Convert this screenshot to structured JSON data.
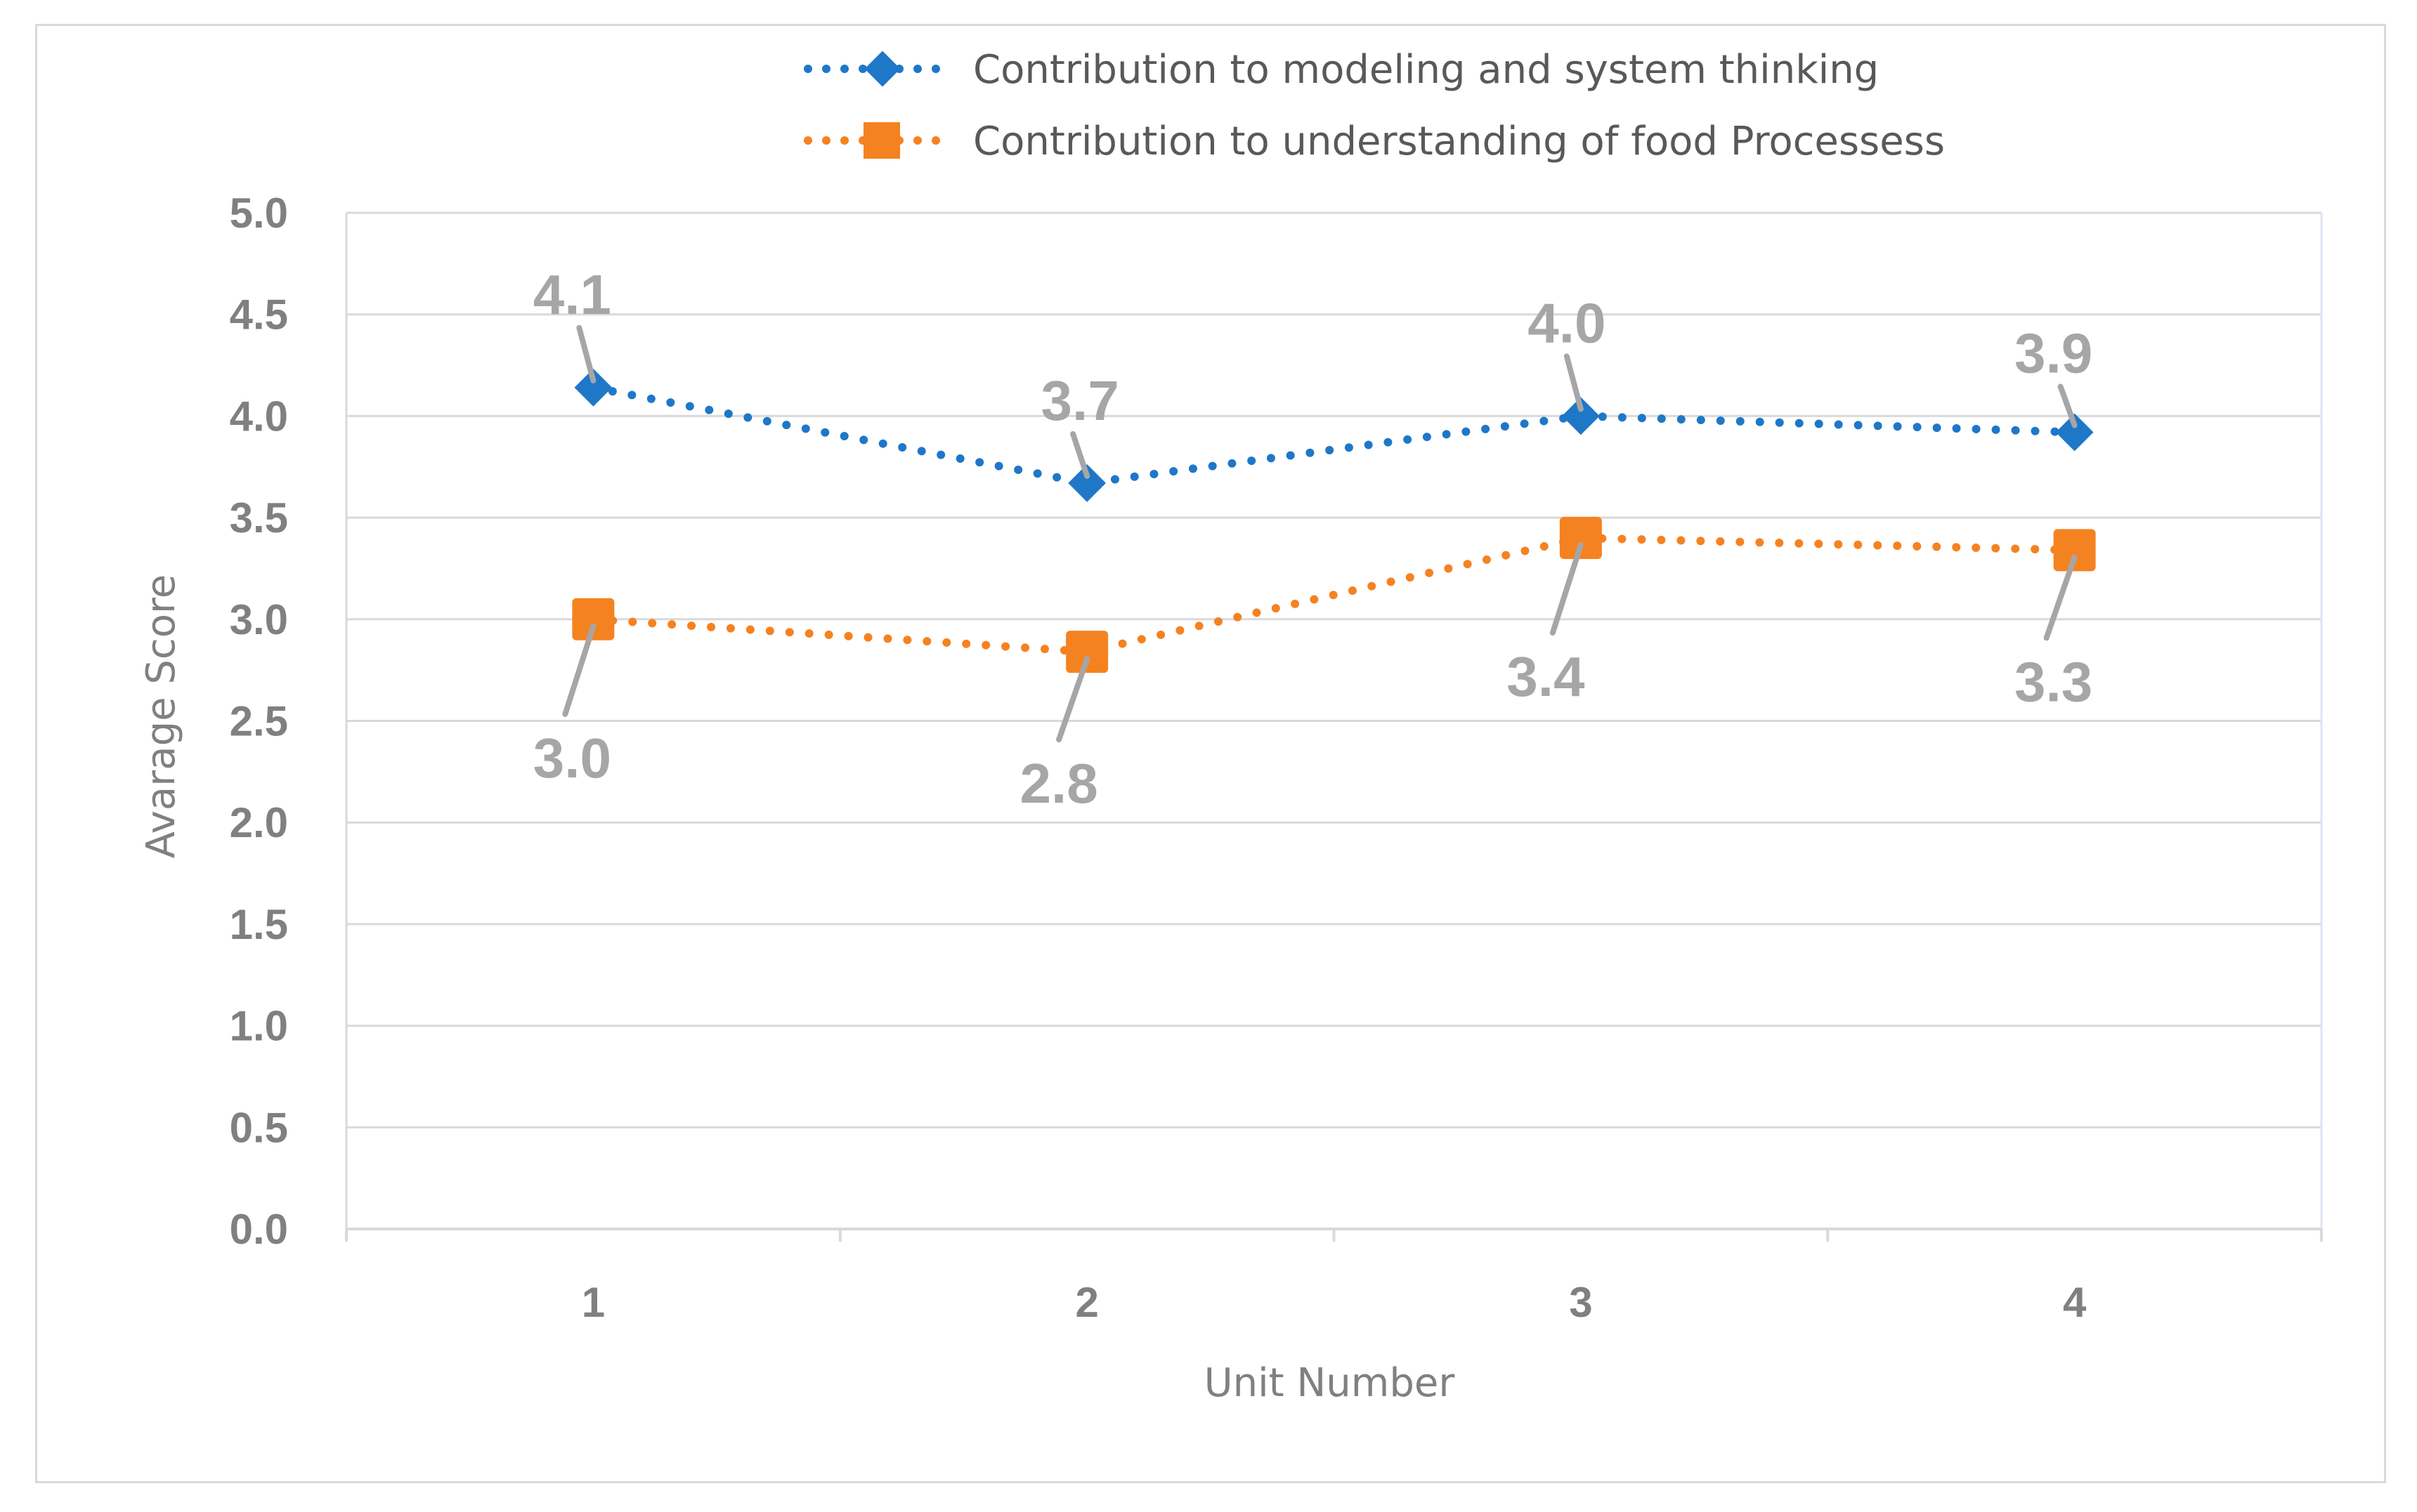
{
  "chart_data": {
    "type": "line",
    "title": "",
    "xlabel": "Unit Number",
    "ylabel": "Avarage Score",
    "categories": [
      "1",
      "2",
      "3",
      "4"
    ],
    "ylim": [
      0,
      5
    ],
    "yticks": [
      "0.0",
      "0.5",
      "1.0",
      "1.5",
      "2.0",
      "2.5",
      "3.0",
      "3.5",
      "4.0",
      "4.5",
      "5.0"
    ],
    "grid": true,
    "legend_position": "top",
    "series": [
      {
        "name": "Contribution to modeling and system thinking",
        "color": "#1f77c8",
        "marker": "diamond",
        "line_style": "dotted",
        "values": [
          4.14,
          3.67,
          4.0,
          3.92
        ],
        "labels": [
          "4.1",
          "3.7",
          "4.0",
          "3.9"
        ]
      },
      {
        "name": "Contribution to understanding of food Processess",
        "color": "#f58220",
        "marker": "square",
        "line_style": "dotted",
        "values": [
          3.0,
          2.84,
          3.4,
          3.34
        ],
        "labels": [
          "3.0",
          "2.8",
          "3.4",
          "3.3"
        ]
      }
    ]
  }
}
